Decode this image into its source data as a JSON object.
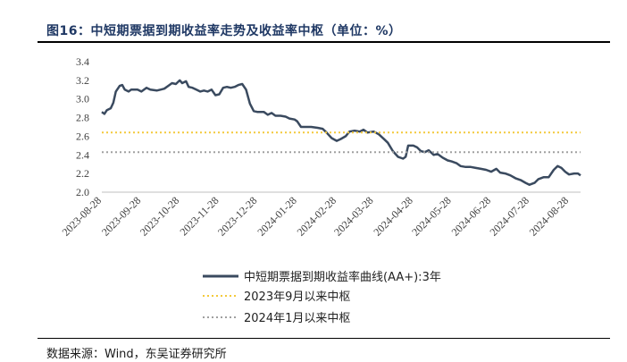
{
  "figure": {
    "title": "图16：中短期票据到期收益率走势及收益率中枢（单位：%）",
    "source": "数据来源：Wind，东吴证券研究所"
  },
  "colors": {
    "title": "#1f3864",
    "series": "#3a4a5f",
    "ref1": "#f3c93b",
    "ref2": "#a0a0a0"
  },
  "chart_data": {
    "type": "line",
    "xlabel": "",
    "ylabel": "",
    "ylim": [
      2.0,
      3.4
    ],
    "yticks": [
      "2.0",
      "2.2",
      "2.4",
      "2.6",
      "2.8",
      "3.0",
      "3.2",
      "3.4"
    ],
    "xticks": [
      "2023-08-28",
      "2023-09-28",
      "2023-10-28",
      "2023-11-28",
      "2023-12-28",
      "2024-01-28",
      "2024-02-28",
      "2024-03-28",
      "2024-04-28",
      "2024-05-28",
      "2024-06-28",
      "2024-07-28",
      "2024-08-28"
    ],
    "grid": false,
    "legend_position": "bottom",
    "series": [
      {
        "name": "中短期票据到期收益率曲线(AA+):3年",
        "style": "solid",
        "points": [
          [
            "2023-08-28",
            2.86
          ],
          [
            "2023-08-30",
            2.84
          ],
          [
            "2023-09-01",
            2.88
          ],
          [
            "2023-09-04",
            2.9
          ],
          [
            "2023-09-06",
            2.96
          ],
          [
            "2023-09-08",
            3.08
          ],
          [
            "2023-09-11",
            3.14
          ],
          [
            "2023-09-13",
            3.15
          ],
          [
            "2023-09-15",
            3.1
          ],
          [
            "2023-09-18",
            3.08
          ],
          [
            "2023-09-20",
            3.1
          ],
          [
            "2023-09-25",
            3.1
          ],
          [
            "2023-09-28",
            3.08
          ],
          [
            "2023-10-02",
            3.12
          ],
          [
            "2023-10-05",
            3.1
          ],
          [
            "2023-10-10",
            3.09
          ],
          [
            "2023-10-13",
            3.1
          ],
          [
            "2023-10-16",
            3.11
          ],
          [
            "2023-10-19",
            3.14
          ],
          [
            "2023-10-22",
            3.17
          ],
          [
            "2023-10-25",
            3.16
          ],
          [
            "2023-10-28",
            3.2
          ],
          [
            "2023-10-30",
            3.17
          ],
          [
            "2023-11-02",
            3.19
          ],
          [
            "2023-11-04",
            3.13
          ],
          [
            "2023-11-07",
            3.12
          ],
          [
            "2023-11-10",
            3.1
          ],
          [
            "2023-11-13",
            3.08
          ],
          [
            "2023-11-16",
            3.09
          ],
          [
            "2023-11-19",
            3.08
          ],
          [
            "2023-11-22",
            3.1
          ],
          [
            "2023-11-25",
            3.04
          ],
          [
            "2023-11-28",
            3.05
          ],
          [
            "2023-12-01",
            3.12
          ],
          [
            "2023-12-04",
            3.13
          ],
          [
            "2023-12-07",
            3.12
          ],
          [
            "2023-12-10",
            3.13
          ],
          [
            "2023-12-13",
            3.15
          ],
          [
            "2023-12-16",
            3.16
          ],
          [
            "2023-12-19",
            3.1
          ],
          [
            "2023-12-22",
            2.95
          ],
          [
            "2023-12-25",
            2.87
          ],
          [
            "2023-12-28",
            2.86
          ],
          [
            "2024-01-02",
            2.86
          ],
          [
            "2024-01-05",
            2.83
          ],
          [
            "2024-01-08",
            2.85
          ],
          [
            "2024-01-11",
            2.82
          ],
          [
            "2024-01-15",
            2.82
          ],
          [
            "2024-01-19",
            2.81
          ],
          [
            "2024-01-22",
            2.79
          ],
          [
            "2024-01-26",
            2.78
          ],
          [
            "2024-01-28",
            2.76
          ],
          [
            "2024-01-31",
            2.7
          ],
          [
            "2024-02-04",
            2.7
          ],
          [
            "2024-02-08",
            2.7
          ],
          [
            "2024-02-13",
            2.69
          ],
          [
            "2024-02-17",
            2.68
          ],
          [
            "2024-02-20",
            2.64
          ],
          [
            "2024-02-24",
            2.58
          ],
          [
            "2024-02-28",
            2.55
          ],
          [
            "2024-03-02",
            2.57
          ],
          [
            "2024-03-06",
            2.6
          ],
          [
            "2024-03-09",
            2.65
          ],
          [
            "2024-03-13",
            2.66
          ],
          [
            "2024-03-17",
            2.65
          ],
          [
            "2024-03-20",
            2.67
          ],
          [
            "2024-03-23",
            2.64
          ],
          [
            "2024-03-28",
            2.65
          ],
          [
            "2024-04-01",
            2.62
          ],
          [
            "2024-04-05",
            2.57
          ],
          [
            "2024-04-08",
            2.53
          ],
          [
            "2024-04-12",
            2.44
          ],
          [
            "2024-04-16",
            2.38
          ],
          [
            "2024-04-20",
            2.36
          ],
          [
            "2024-04-22",
            2.38
          ],
          [
            "2024-04-24",
            2.5
          ],
          [
            "2024-04-28",
            2.5
          ],
          [
            "2024-05-01",
            2.48
          ],
          [
            "2024-05-04",
            2.44
          ],
          [
            "2024-05-07",
            2.43
          ],
          [
            "2024-05-10",
            2.45
          ],
          [
            "2024-05-14",
            2.4
          ],
          [
            "2024-05-17",
            2.41
          ],
          [
            "2024-05-21",
            2.37
          ],
          [
            "2024-05-25",
            2.34
          ],
          [
            "2024-05-28",
            2.33
          ],
          [
            "2024-06-01",
            2.31
          ],
          [
            "2024-06-04",
            2.28
          ],
          [
            "2024-06-08",
            2.27
          ],
          [
            "2024-06-12",
            2.27
          ],
          [
            "2024-06-16",
            2.26
          ],
          [
            "2024-06-20",
            2.25
          ],
          [
            "2024-06-24",
            2.24
          ],
          [
            "2024-06-28",
            2.22
          ],
          [
            "2024-07-02",
            2.25
          ],
          [
            "2024-07-05",
            2.21
          ],
          [
            "2024-07-09",
            2.2
          ],
          [
            "2024-07-13",
            2.18
          ],
          [
            "2024-07-17",
            2.15
          ],
          [
            "2024-07-21",
            2.13
          ],
          [
            "2024-07-25",
            2.1
          ],
          [
            "2024-07-28",
            2.08
          ],
          [
            "2024-08-01",
            2.1
          ],
          [
            "2024-08-04",
            2.14
          ],
          [
            "2024-08-08",
            2.16
          ],
          [
            "2024-08-12",
            2.16
          ],
          [
            "2024-08-16",
            2.24
          ],
          [
            "2024-08-19",
            2.28
          ],
          [
            "2024-08-22",
            2.26
          ],
          [
            "2024-08-25",
            2.22
          ],
          [
            "2024-08-28",
            2.19
          ],
          [
            "2024-09-01",
            2.2
          ],
          [
            "2024-09-04",
            2.2
          ],
          [
            "2024-09-06",
            2.18
          ]
        ]
      },
      {
        "name": "2023年9月以来中枢",
        "style": "dotted",
        "points": [
          [
            "2023-08-28",
            2.64
          ],
          [
            "2024-09-06",
            2.64
          ]
        ]
      },
      {
        "name": "2024年1月以来中枢",
        "style": "dotted",
        "points": [
          [
            "2023-08-28",
            2.43
          ],
          [
            "2024-09-06",
            2.43
          ]
        ]
      }
    ]
  }
}
